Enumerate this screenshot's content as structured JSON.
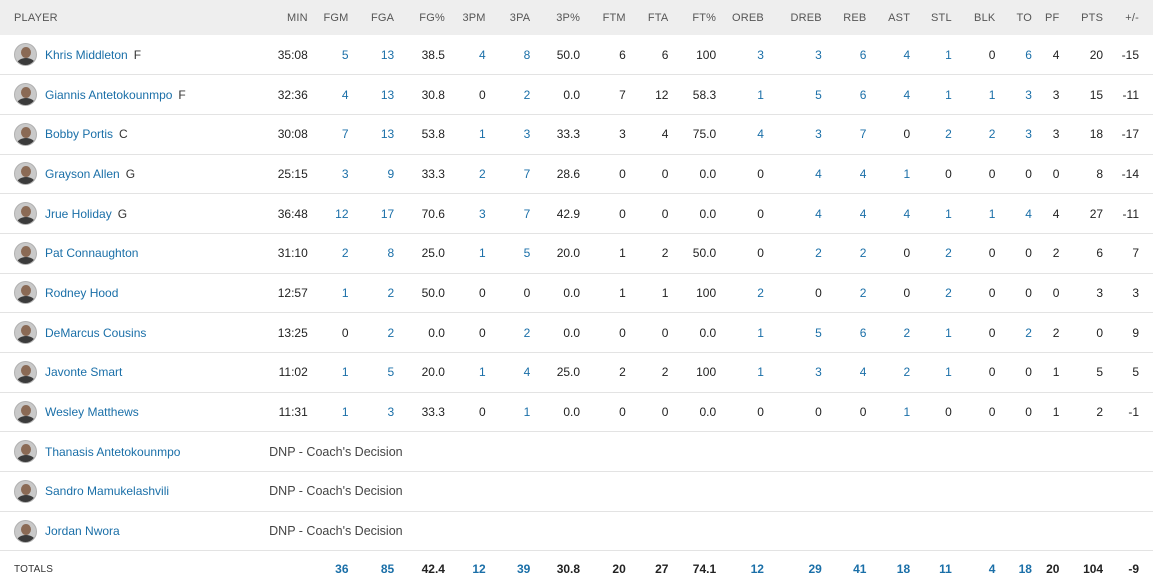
{
  "headers": [
    "PLAYER",
    "MIN",
    "FGM",
    "FGA",
    "FG%",
    "3PM",
    "3PA",
    "3P%",
    "FTM",
    "FTA",
    "FT%",
    "OREB",
    "DREB",
    "REB",
    "AST",
    "STL",
    "BLK",
    "TO",
    "PF",
    "PTS",
    "+/-"
  ],
  "players": [
    {
      "name": "Khris Middleton",
      "pos": "F",
      "stats": [
        "35:08",
        "5",
        "13",
        "38.5",
        "4",
        "8",
        "50.0",
        "6",
        "6",
        "100",
        "3",
        "3",
        "6",
        "4",
        "1",
        "0",
        "6",
        "4",
        "20",
        "-15"
      ]
    },
    {
      "name": "Giannis Antetokounmpo",
      "pos": "F",
      "stats": [
        "32:36",
        "4",
        "13",
        "30.8",
        "0",
        "2",
        "0.0",
        "7",
        "12",
        "58.3",
        "1",
        "5",
        "6",
        "4",
        "1",
        "1",
        "3",
        "3",
        "15",
        "-11"
      ]
    },
    {
      "name": "Bobby Portis",
      "pos": "C",
      "stats": [
        "30:08",
        "7",
        "13",
        "53.8",
        "1",
        "3",
        "33.3",
        "3",
        "4",
        "75.0",
        "4",
        "3",
        "7",
        "0",
        "2",
        "2",
        "3",
        "3",
        "18",
        "-17"
      ]
    },
    {
      "name": "Grayson Allen",
      "pos": "G",
      "stats": [
        "25:15",
        "3",
        "9",
        "33.3",
        "2",
        "7",
        "28.6",
        "0",
        "0",
        "0.0",
        "0",
        "4",
        "4",
        "1",
        "0",
        "0",
        "0",
        "0",
        "8",
        "-14"
      ]
    },
    {
      "name": "Jrue Holiday",
      "pos": "G",
      "stats": [
        "36:48",
        "12",
        "17",
        "70.6",
        "3",
        "7",
        "42.9",
        "0",
        "0",
        "0.0",
        "0",
        "4",
        "4",
        "4",
        "1",
        "1",
        "4",
        "4",
        "27",
        "-11"
      ]
    },
    {
      "name": "Pat Connaughton",
      "pos": "",
      "stats": [
        "31:10",
        "2",
        "8",
        "25.0",
        "1",
        "5",
        "20.0",
        "1",
        "2",
        "50.0",
        "0",
        "2",
        "2",
        "0",
        "2",
        "0",
        "0",
        "2",
        "6",
        "7"
      ]
    },
    {
      "name": "Rodney Hood",
      "pos": "",
      "stats": [
        "12:57",
        "1",
        "2",
        "50.0",
        "0",
        "0",
        "0.0",
        "1",
        "1",
        "100",
        "2",
        "0",
        "2",
        "0",
        "2",
        "0",
        "0",
        "0",
        "3",
        "3"
      ]
    },
    {
      "name": "DeMarcus Cousins",
      "pos": "",
      "stats": [
        "13:25",
        "0",
        "2",
        "0.0",
        "0",
        "2",
        "0.0",
        "0",
        "0",
        "0.0",
        "1",
        "5",
        "6",
        "2",
        "1",
        "0",
        "2",
        "2",
        "0",
        "9"
      ]
    },
    {
      "name": "Javonte Smart",
      "pos": "",
      "stats": [
        "11:02",
        "1",
        "5",
        "20.0",
        "1",
        "4",
        "25.0",
        "2",
        "2",
        "100",
        "1",
        "3",
        "4",
        "2",
        "1",
        "0",
        "0",
        "1",
        "5",
        "5"
      ]
    },
    {
      "name": "Wesley Matthews",
      "pos": "",
      "stats": [
        "11:31",
        "1",
        "3",
        "33.3",
        "0",
        "1",
        "0.0",
        "0",
        "0",
        "0.0",
        "0",
        "0",
        "0",
        "1",
        "0",
        "0",
        "0",
        "1",
        "2",
        "-1"
      ]
    }
  ],
  "dnp": [
    {
      "name": "Thanasis Antetokounmpo",
      "status": "DNP - Coach's Decision"
    },
    {
      "name": "Sandro Mamukelashvili",
      "status": "DNP - Coach's Decision"
    },
    {
      "name": "Jordan Nwora",
      "status": "DNP - Coach's Decision"
    }
  ],
  "totals": {
    "label": "TOTALS",
    "stats": [
      "",
      "36",
      "85",
      "42.4",
      "12",
      "39",
      "30.8",
      "20",
      "27",
      "74.1",
      "12",
      "29",
      "41",
      "18",
      "11",
      "4",
      "18",
      "20",
      "104",
      "-9"
    ]
  },
  "colors": {
    "link": "#1a6fa8",
    "header_bg": "#eeeeee"
  }
}
